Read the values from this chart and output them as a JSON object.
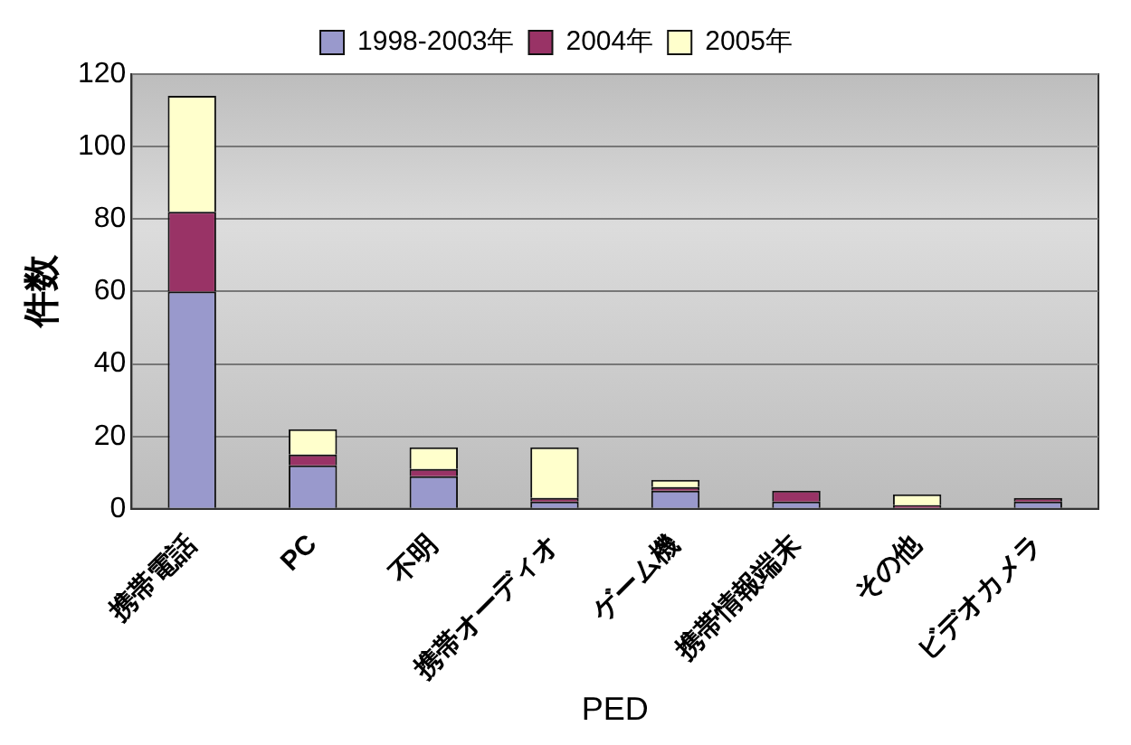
{
  "chart_data": {
    "type": "bar",
    "stacked": true,
    "xlabel": "PED",
    "ylabel": "件数",
    "categories": [
      "携帯電話",
      "PC",
      "不明",
      "携帯オーディオ",
      "ゲーム機",
      "携帯情報端末",
      "その他",
      "ビデオカメラ"
    ],
    "series": [
      {
        "name": "1998-2003年",
        "color": "#9999cc",
        "values": [
          60,
          12,
          9,
          2,
          5,
          2,
          0,
          2
        ]
      },
      {
        "name": "2004年",
        "color": "#993366",
        "values": [
          22,
          3,
          2,
          1,
          1,
          3,
          1,
          1
        ]
      },
      {
        "name": "2005年",
        "color": "#ffffcc",
        "values": [
          32,
          7,
          6,
          14,
          2,
          0,
          3,
          0
        ]
      }
    ],
    "ylim": [
      0,
      120
    ],
    "yticks": [
      0,
      20,
      40,
      60,
      80,
      100,
      120
    ],
    "grid": "y",
    "legend": "top"
  }
}
